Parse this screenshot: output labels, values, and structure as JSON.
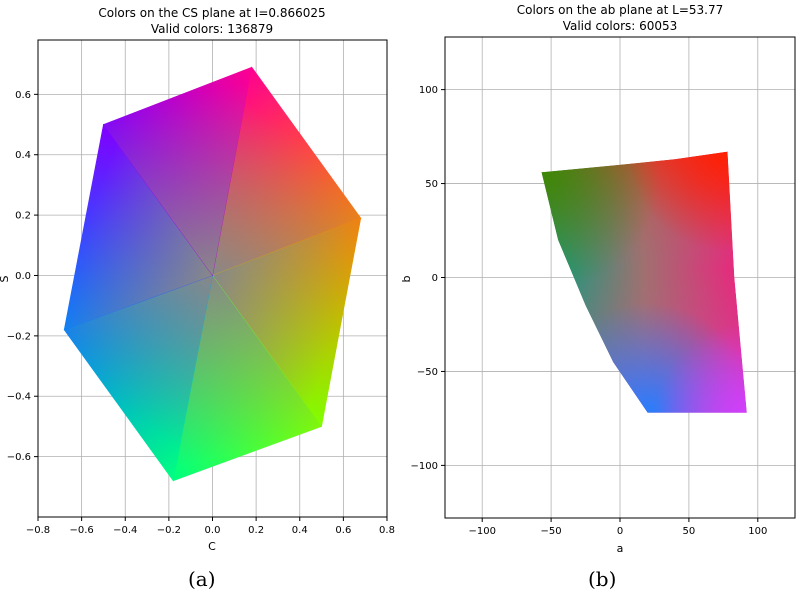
{
  "panels": {
    "a": {
      "caption": "(a)"
    },
    "b": {
      "caption": "(b)"
    }
  },
  "chart_data": [
    {
      "type": "scatter",
      "title": "Colors on the CS plane at I=0.866025",
      "subtitle": "Valid colors: 136879",
      "xlabel": "C",
      "ylabel": "S",
      "xlim": [
        -0.8,
        0.8
      ],
      "ylim": [
        -0.8,
        0.78
      ],
      "xticks": [
        "-0.8",
        "-0.6",
        "-0.4",
        "-0.2",
        "0.0",
        "0.2",
        "0.4",
        "0.6",
        "0.8"
      ],
      "yticks": [
        "-0.6",
        "-0.4",
        "-0.2",
        "0.0",
        "0.2",
        "0.4",
        "0.6"
      ],
      "grid": true,
      "region_vertices": [
        [
          0.18,
          0.69
        ],
        [
          0.68,
          0.19
        ],
        [
          0.5,
          -0.5
        ],
        [
          -0.18,
          -0.68
        ],
        [
          -0.68,
          -0.18
        ],
        [
          -0.5,
          0.5
        ]
      ],
      "vertex_colors": [
        "#ff0090",
        "#ff8000",
        "#80ff00",
        "#00ff80",
        "#0080ff",
        "#8000ff"
      ],
      "center_color": "#888888"
    },
    {
      "type": "scatter",
      "title": "Colors on the ab plane at L=53.77",
      "subtitle": "Valid colors: 60053",
      "xlabel": "a",
      "ylabel": "b",
      "xlim": [
        -127,
        127
      ],
      "ylim": [
        -128,
        128
      ],
      "xticks": [
        "-100",
        "-50",
        "0",
        "50",
        "100"
      ],
      "yticks": [
        "-100",
        "-50",
        "0",
        "50",
        "100"
      ],
      "grid": true,
      "region_top_edge": [
        [
          -57,
          56
        ],
        [
          0,
          60
        ],
        [
          40,
          63
        ],
        [
          78,
          67
        ]
      ],
      "region_right_edge": [
        [
          78,
          67
        ],
        [
          83,
          0
        ],
        [
          92,
          -72
        ]
      ],
      "region_bottom_edge": [
        [
          92,
          -72
        ],
        [
          20,
          -72
        ]
      ],
      "region_left_edge": [
        [
          20,
          -72
        ],
        [
          -5,
          -45
        ],
        [
          -25,
          -15
        ],
        [
          -45,
          20
        ],
        [
          -57,
          56
        ]
      ],
      "corner_colors": {
        "top_left": "#3a8a00",
        "top_right": "#ff2000",
        "bottom_right": "#d040ff",
        "bottom_left": "#2080ff",
        "left_mid": "#00a080",
        "center": "#a07070"
      }
    }
  ]
}
